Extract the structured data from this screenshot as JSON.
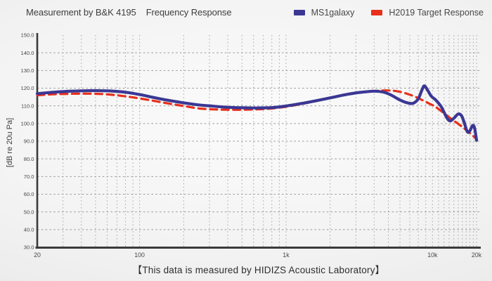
{
  "header": {
    "title_left": "Measurement by B&K 4195",
    "title_right": "Frequency Response"
  },
  "legend": [
    {
      "label": "MS1galaxy",
      "color": "#3a3794"
    },
    {
      "label": "H2019 Target Response",
      "color": "#e7301b"
    }
  ],
  "footer": {
    "text": "【This data is measured by HIDIZS Acoustic Laboratory】"
  },
  "colors": {
    "axis": "#3a3a3a",
    "grid": "#a3a3a3",
    "tick_text": "#474747"
  },
  "chart_data": {
    "type": "line",
    "x_scale": "log",
    "x_unit": "Hz",
    "xlim": [
      20,
      20000
    ],
    "ylim": [
      30,
      150
    ],
    "ylabel": "[dB re 20u Pa]",
    "grid": "dashed",
    "legend_position": "top-right",
    "x_ticks": [
      {
        "value": 20,
        "label": "20"
      },
      {
        "value": 100,
        "label": "100"
      },
      {
        "value": 1000,
        "label": "1k"
      },
      {
        "value": 10000,
        "label": "10k"
      },
      {
        "value": 20000,
        "label": "20k"
      }
    ],
    "y_tick_labels": [
      "150.0",
      "140.0",
      "130.0",
      "120.0",
      "110.0",
      "100.0",
      "90.0",
      "80.0",
      "70.0",
      "60.0",
      "50.0",
      "40.0",
      "30.0"
    ],
    "series": [
      {
        "name": "H2019 Target Response",
        "color": "#e7301b",
        "style": "dashed",
        "width": 3.2,
        "points": [
          [
            20,
            116.0
          ],
          [
            25,
            116.5
          ],
          [
            32,
            116.8
          ],
          [
            42,
            116.9
          ],
          [
            55,
            116.7
          ],
          [
            70,
            116.0
          ],
          [
            90,
            114.8
          ],
          [
            120,
            113.1
          ],
          [
            160,
            111.2
          ],
          [
            200,
            109.9
          ],
          [
            250,
            108.6
          ],
          [
            320,
            108.0
          ],
          [
            400,
            107.8
          ],
          [
            500,
            107.8
          ],
          [
            630,
            108.0
          ],
          [
            800,
            108.5
          ],
          [
            1000,
            109.5
          ],
          [
            1250,
            110.9
          ],
          [
            1600,
            112.7
          ],
          [
            2000,
            114.4
          ],
          [
            2500,
            116.1
          ],
          [
            3200,
            117.5
          ],
          [
            4000,
            118.4
          ],
          [
            5000,
            118.7
          ],
          [
            5700,
            118.3
          ],
          [
            6500,
            117.2
          ],
          [
            7500,
            115.4
          ],
          [
            8500,
            113.3
          ],
          [
            9500,
            111.3
          ],
          [
            10500,
            109.4
          ],
          [
            12000,
            105.8
          ],
          [
            13500,
            102.5
          ],
          [
            15000,
            99.8
          ],
          [
            16500,
            97.2
          ],
          [
            18000,
            94.6
          ],
          [
            19000,
            92.9
          ],
          [
            20000,
            91.2
          ]
        ]
      },
      {
        "name": "MS1galaxy",
        "color": "#3a3794",
        "style": "solid",
        "width": 4.2,
        "points": [
          [
            20,
            116.9
          ],
          [
            25,
            117.6
          ],
          [
            32,
            118.2
          ],
          [
            40,
            118.5
          ],
          [
            50,
            118.6
          ],
          [
            63,
            118.4
          ],
          [
            80,
            117.7
          ],
          [
            100,
            116.4
          ],
          [
            125,
            114.7
          ],
          [
            160,
            113.0
          ],
          [
            200,
            111.7
          ],
          [
            250,
            110.6
          ],
          [
            320,
            109.8
          ],
          [
            400,
            109.2
          ],
          [
            500,
            108.9
          ],
          [
            630,
            108.8
          ],
          [
            800,
            109.0
          ],
          [
            1000,
            109.9
          ],
          [
            1250,
            111.2
          ],
          [
            1600,
            112.9
          ],
          [
            2000,
            114.5
          ],
          [
            2500,
            116.2
          ],
          [
            3200,
            117.6
          ],
          [
            4000,
            118.3
          ],
          [
            4600,
            117.8
          ],
          [
            5200,
            116.2
          ],
          [
            6000,
            113.3
          ],
          [
            6800,
            111.6
          ],
          [
            7400,
            111.5
          ],
          [
            8000,
            114.0
          ],
          [
            8500,
            119.2
          ],
          [
            8800,
            121.3
          ],
          [
            9200,
            119.3
          ],
          [
            9800,
            115.5
          ],
          [
            10500,
            113.4
          ],
          [
            11500,
            109.4
          ],
          [
            12500,
            103.4
          ],
          [
            13200,
            101.5
          ],
          [
            14000,
            103.0
          ],
          [
            15000,
            105.4
          ],
          [
            15800,
            104.4
          ],
          [
            16500,
            100.4
          ],
          [
            17300,
            95.3
          ],
          [
            18000,
            95.9
          ],
          [
            18800,
            98.9
          ],
          [
            19400,
            97.4
          ],
          [
            20000,
            90.5
          ]
        ]
      }
    ]
  }
}
